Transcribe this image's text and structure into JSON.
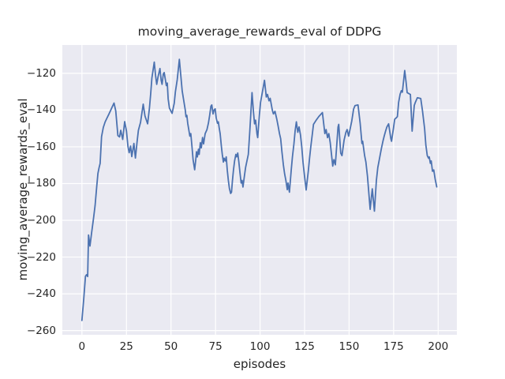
{
  "style": {
    "figure_bg": "#ffffff",
    "axes_bg": "#eaeaf2",
    "grid_color": "#ffffff",
    "text_color": "#262626",
    "line_color": "#4c72b0"
  },
  "chart_data": {
    "type": "line",
    "title": "moving_average_rewards_eval of DDPG",
    "xlabel": "episodes",
    "ylabel": "moving_average_rewards_eval",
    "grid": true,
    "legend_position": "none",
    "xlim": [
      -11,
      210.5
    ],
    "ylim": [
      -262.3,
      -104.6
    ],
    "xticks": [
      0,
      25,
      50,
      75,
      100,
      125,
      150,
      175,
      200
    ],
    "yticks": [
      -260,
      -240,
      -220,
      -200,
      -180,
      -160,
      -140,
      -120
    ],
    "series": [
      {
        "name": "moving_average_rewards_eval",
        "color": "#4c72b0",
        "points": [
          [
            0,
            -254.5
          ],
          [
            1,
            -243.0
          ],
          [
            2,
            -230.5
          ],
          [
            2.6,
            -229.6
          ],
          [
            3.2,
            -230.6
          ],
          [
            3.7,
            -208.0
          ],
          [
            4.5,
            -214.0
          ],
          [
            5.5,
            -206.5
          ],
          [
            6.5,
            -199.0
          ],
          [
            7.4,
            -192.0
          ],
          [
            8.3,
            -181.5
          ],
          [
            9,
            -174.5
          ],
          [
            9.6,
            -171.5
          ],
          [
            10.2,
            -169.0
          ],
          [
            11,
            -154.5
          ],
          [
            12,
            -149.5
          ],
          [
            13,
            -146.5
          ],
          [
            14,
            -144.5
          ],
          [
            15,
            -142.5
          ],
          [
            16,
            -140.5
          ],
          [
            17,
            -138.3
          ],
          [
            18,
            -136.2
          ],
          [
            19,
            -140.5
          ],
          [
            20.2,
            -153.9
          ],
          [
            21.1,
            -154.6
          ],
          [
            21.8,
            -151.0
          ],
          [
            22.9,
            -156.0
          ],
          [
            24,
            -146.3
          ],
          [
            25,
            -151.5
          ],
          [
            25.8,
            -159.6
          ],
          [
            26.5,
            -163.2
          ],
          [
            27.3,
            -159.6
          ],
          [
            28,
            -165.3
          ],
          [
            29.2,
            -158.2
          ],
          [
            30,
            -166.1
          ],
          [
            31,
            -157.0
          ],
          [
            31.7,
            -151.0
          ],
          [
            32.9,
            -146.7
          ],
          [
            34.4,
            -136.8
          ],
          [
            35.4,
            -143.2
          ],
          [
            36.9,
            -147.5
          ],
          [
            37.9,
            -138.9
          ],
          [
            38.6,
            -131.0
          ],
          [
            39.3,
            -122.5
          ],
          [
            40.6,
            -113.9
          ],
          [
            41.3,
            -121.0
          ],
          [
            42,
            -126.0
          ],
          [
            42.8,
            -121.7
          ],
          [
            43.8,
            -117.4
          ],
          [
            44.5,
            -124.0
          ],
          [
            45,
            -126.0
          ],
          [
            45.7,
            -120.3
          ],
          [
            46.2,
            -119.6
          ],
          [
            47.4,
            -126.7
          ],
          [
            47.9,
            -125.3
          ],
          [
            48.4,
            -133.9
          ],
          [
            49.1,
            -138.9
          ],
          [
            50.6,
            -141.8
          ],
          [
            51.8,
            -136.3
          ],
          [
            52.5,
            -130.0
          ],
          [
            53.5,
            -123.5
          ],
          [
            54.7,
            -112.4
          ],
          [
            56.3,
            -129.6
          ],
          [
            58,
            -140.0
          ],
          [
            58.4,
            -143.6
          ],
          [
            58.9,
            -142.9
          ],
          [
            59.4,
            -147.2
          ],
          [
            59.9,
            -150.0
          ],
          [
            60.6,
            -154.2
          ],
          [
            61.1,
            -152.8
          ],
          [
            61.8,
            -159.9
          ],
          [
            62.4,
            -167.0
          ],
          [
            63.3,
            -172.5
          ],
          [
            63.9,
            -167.0
          ],
          [
            64.3,
            -162.7
          ],
          [
            64.8,
            -165.5
          ],
          [
            65.4,
            -161.3
          ],
          [
            65.8,
            -164.1
          ],
          [
            66.5,
            -157.7
          ],
          [
            67,
            -160.6
          ],
          [
            67.7,
            -154.9
          ],
          [
            68.3,
            -158.4
          ],
          [
            69.2,
            -152.8
          ],
          [
            70.2,
            -150.6
          ],
          [
            71,
            -147.2
          ],
          [
            71.7,
            -142.9
          ],
          [
            72.4,
            -137.9
          ],
          [
            72.9,
            -137.2
          ],
          [
            73.6,
            -142.1
          ],
          [
            74.2,
            -140.0
          ],
          [
            74.8,
            -139.3
          ],
          [
            75.4,
            -144.3
          ],
          [
            76.1,
            -147.2
          ],
          [
            76.6,
            -146.4
          ],
          [
            77.1,
            -150.0
          ],
          [
            77.6,
            -152.8
          ],
          [
            78.3,
            -159.9
          ],
          [
            78.8,
            -164.1
          ],
          [
            79.4,
            -168.3
          ],
          [
            79.8,
            -166.2
          ],
          [
            80.5,
            -167.7
          ],
          [
            81,
            -165.5
          ],
          [
            81.6,
            -172.6
          ],
          [
            82.2,
            -178.3
          ],
          [
            82.8,
            -182.6
          ],
          [
            83.5,
            -185.4
          ],
          [
            84,
            -184.7
          ],
          [
            84.5,
            -178.3
          ],
          [
            85.1,
            -172.6
          ],
          [
            85.7,
            -167.7
          ],
          [
            86.4,
            -164.1
          ],
          [
            86.9,
            -165.5
          ],
          [
            87.5,
            -163.4
          ],
          [
            88.1,
            -168.3
          ],
          [
            88.7,
            -174.0
          ],
          [
            89.4,
            -179.7
          ],
          [
            89.9,
            -178.3
          ],
          [
            90.4,
            -181.9
          ],
          [
            91.3,
            -175.4
          ],
          [
            91.9,
            -171.1
          ],
          [
            93.4,
            -164.1
          ],
          [
            94.2,
            -152.0
          ],
          [
            95.5,
            -130.5
          ],
          [
            96.3,
            -141.0
          ],
          [
            96.9,
            -147.5
          ],
          [
            97.5,
            -145.5
          ],
          [
            98.3,
            -153.0
          ],
          [
            98.7,
            -155.0
          ],
          [
            99.6,
            -142.9
          ],
          [
            100.3,
            -135.8
          ],
          [
            102.5,
            -123.8
          ],
          [
            103.5,
            -132.9
          ],
          [
            104.2,
            -131.5
          ],
          [
            105,
            -135.0
          ],
          [
            105.7,
            -133.6
          ],
          [
            106.9,
            -140.0
          ],
          [
            107.5,
            -142.1
          ],
          [
            108.4,
            -140.7
          ],
          [
            109.4,
            -145.0
          ],
          [
            110.1,
            -148.5
          ],
          [
            110.9,
            -152.8
          ],
          [
            111.6,
            -155.6
          ],
          [
            112.3,
            -162.7
          ],
          [
            113.1,
            -169.8
          ],
          [
            113.8,
            -174.7
          ],
          [
            114.5,
            -178.3
          ],
          [
            115.3,
            -183.3
          ],
          [
            115.7,
            -179.7
          ],
          [
            116.5,
            -184.7
          ],
          [
            117.5,
            -172.6
          ],
          [
            118.2,
            -165.5
          ],
          [
            119,
            -158.4
          ],
          [
            119.7,
            -151.4
          ],
          [
            120.4,
            -146.4
          ],
          [
            121.2,
            -152.1
          ],
          [
            121.9,
            -149.2
          ],
          [
            122.7,
            -153.5
          ],
          [
            123.4,
            -159.9
          ],
          [
            124.1,
            -168.3
          ],
          [
            124.9,
            -175.4
          ],
          [
            125.9,
            -183.5
          ],
          [
            127.1,
            -173.3
          ],
          [
            127.8,
            -166.2
          ],
          [
            128.5,
            -159.9
          ],
          [
            129.3,
            -153.5
          ],
          [
            130,
            -147.8
          ],
          [
            131.5,
            -145.5
          ],
          [
            133,
            -143.5
          ],
          [
            135,
            -141.4
          ],
          [
            136.4,
            -152.8
          ],
          [
            137.1,
            -150.6
          ],
          [
            137.9,
            -155.0
          ],
          [
            138.6,
            -152.8
          ],
          [
            139.4,
            -157.7
          ],
          [
            140.8,
            -170.5
          ],
          [
            141.5,
            -167.0
          ],
          [
            142.3,
            -169.8
          ],
          [
            143.8,
            -149.2
          ],
          [
            144.2,
            -147.8
          ],
          [
            145.3,
            -163.4
          ],
          [
            146,
            -164.8
          ],
          [
            147.2,
            -156.3
          ],
          [
            148.2,
            -152.1
          ],
          [
            148.9,
            -150.6
          ],
          [
            149.7,
            -154.2
          ],
          [
            151.5,
            -146.0
          ],
          [
            152.5,
            -139.5
          ],
          [
            153.3,
            -137.6
          ],
          [
            155,
            -137.2
          ],
          [
            156.2,
            -147.0
          ],
          [
            157.2,
            -158.2
          ],
          [
            157.6,
            -157.0
          ],
          [
            158.7,
            -164.8
          ],
          [
            159.4,
            -168.3
          ],
          [
            160.3,
            -176.0
          ],
          [
            161.8,
            -194.0
          ],
          [
            163,
            -182.9
          ],
          [
            164.2,
            -195.0
          ],
          [
            165.3,
            -178.3
          ],
          [
            166.1,
            -171.3
          ],
          [
            166.8,
            -167.7
          ],
          [
            167.5,
            -164.2
          ],
          [
            168.2,
            -160.6
          ],
          [
            169,
            -157.0
          ],
          [
            169.7,
            -154.2
          ],
          [
            170.5,
            -151.4
          ],
          [
            171.2,
            -149.2
          ],
          [
            172.2,
            -147.5
          ],
          [
            173.4,
            -155.5
          ],
          [
            173.8,
            -157.0
          ],
          [
            174.9,
            -150.0
          ],
          [
            175.6,
            -145.0
          ],
          [
            176.4,
            -144.3
          ],
          [
            177.1,
            -143.6
          ],
          [
            177.8,
            -135.8
          ],
          [
            178.6,
            -131.5
          ],
          [
            179.3,
            -129.5
          ],
          [
            179.9,
            -130.3
          ],
          [
            181.2,
            -118.5
          ],
          [
            182,
            -125.1
          ],
          [
            182.6,
            -130.5
          ],
          [
            184.4,
            -131.5
          ],
          [
            185.4,
            -151.5
          ],
          [
            186.6,
            -137.5
          ],
          [
            187.2,
            -135.8
          ],
          [
            188.3,
            -133.3
          ],
          [
            190.2,
            -133.7
          ],
          [
            191.2,
            -140.3
          ],
          [
            192.4,
            -150.0
          ],
          [
            193.1,
            -159.1
          ],
          [
            193.9,
            -164.8
          ],
          [
            194.6,
            -166.2
          ],
          [
            195,
            -165.5
          ],
          [
            195.6,
            -169.0
          ],
          [
            196.1,
            -167.7
          ],
          [
            196.8,
            -173.3
          ],
          [
            197.5,
            -172.6
          ],
          [
            198.3,
            -177.6
          ],
          [
            199.2,
            -181.8
          ]
        ]
      }
    ]
  }
}
